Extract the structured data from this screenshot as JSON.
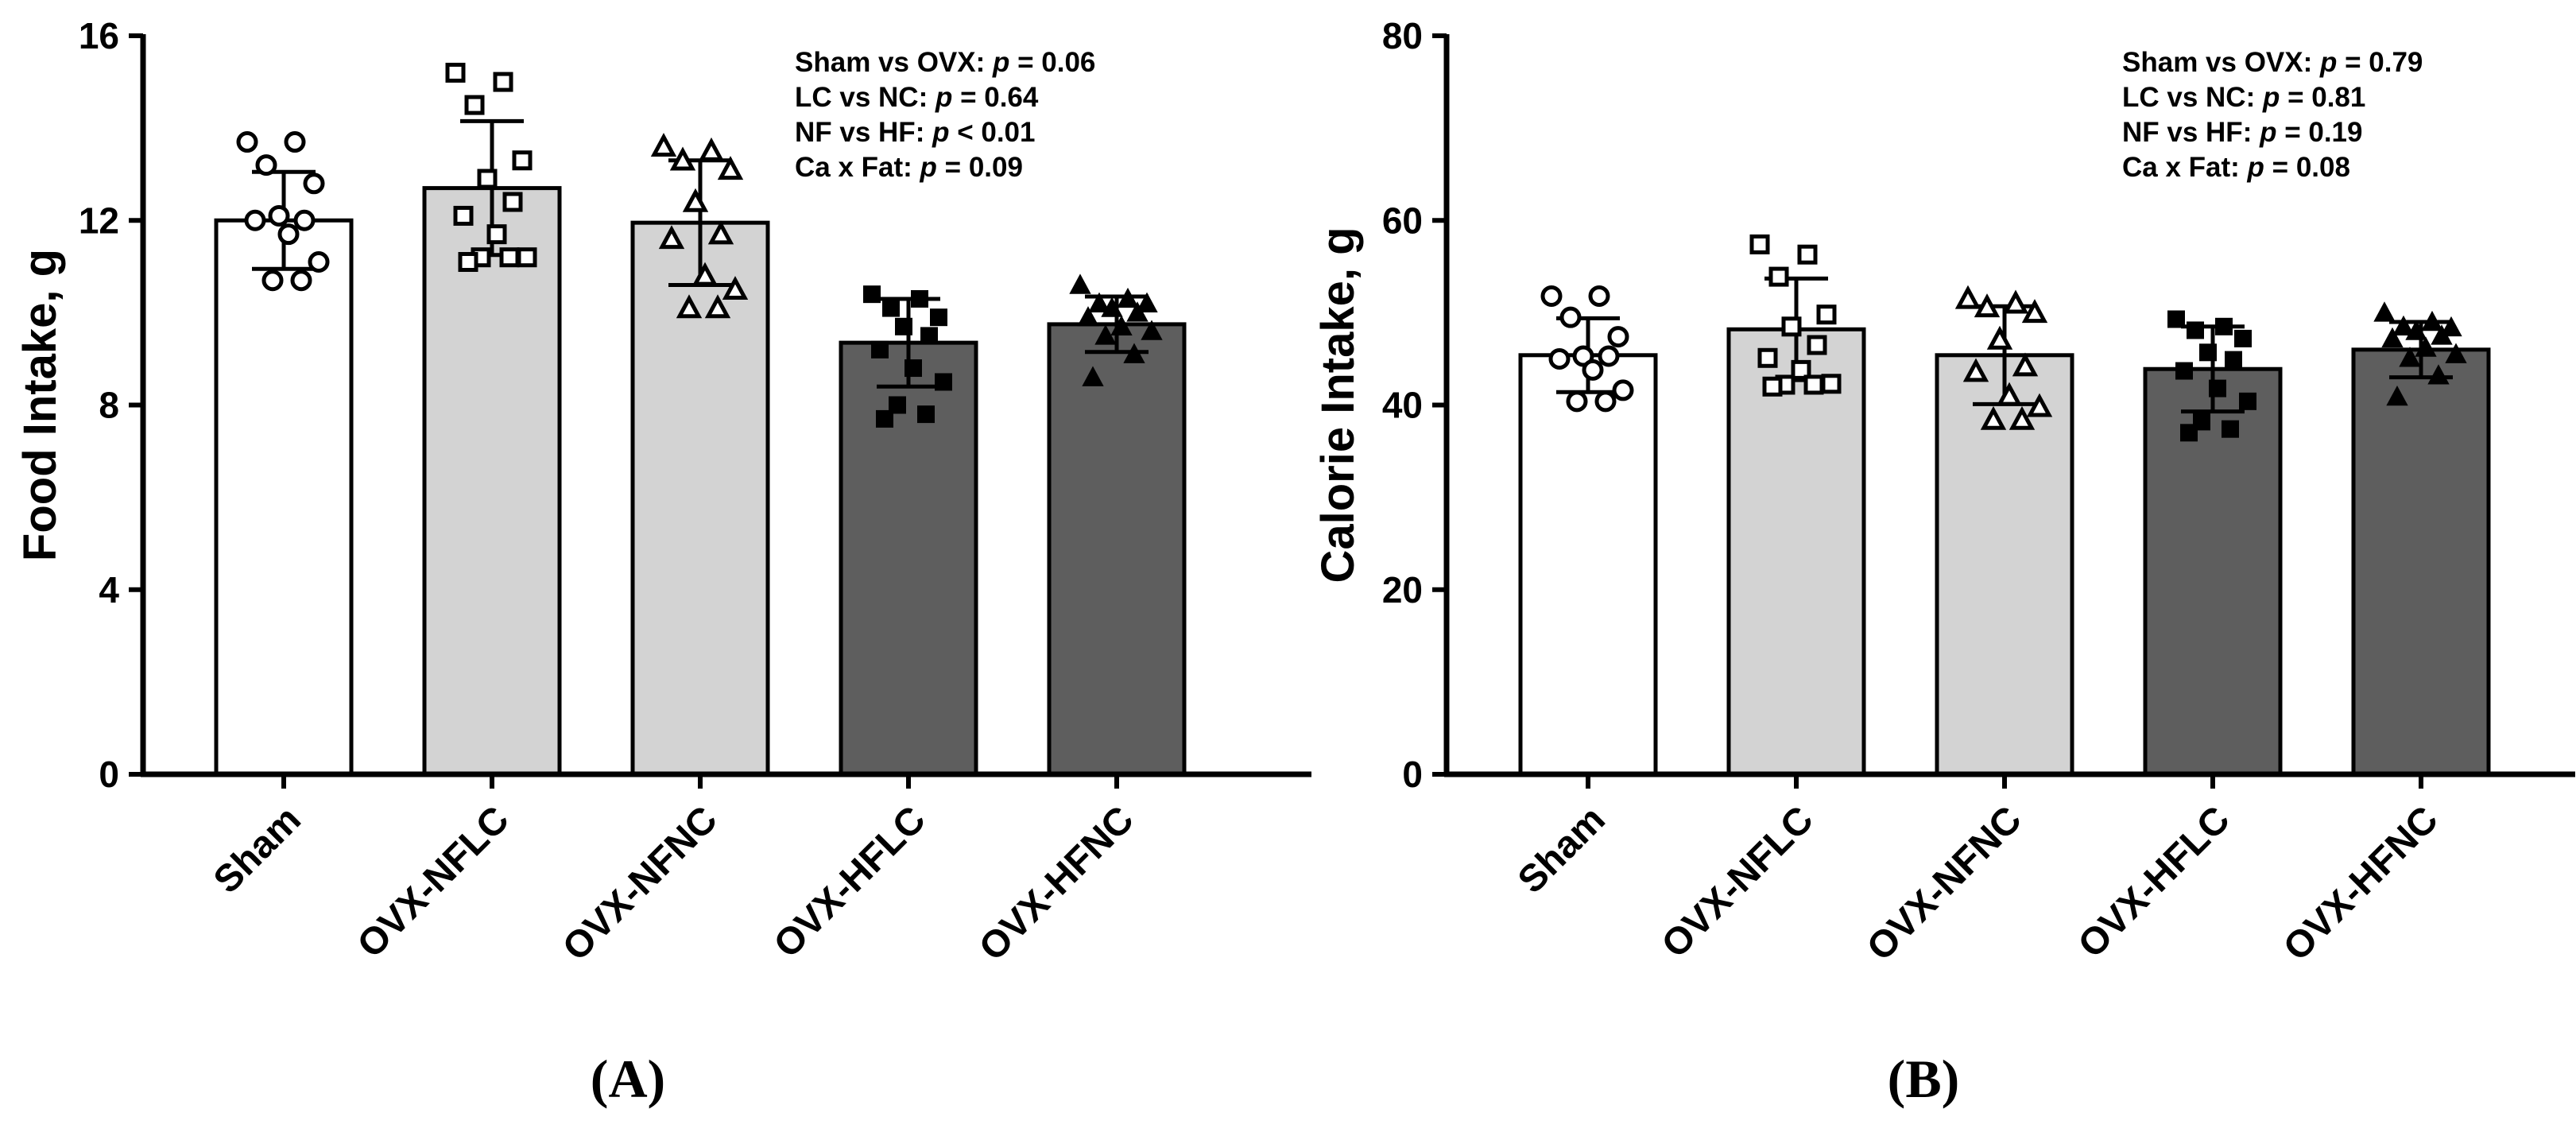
{
  "chart_data": [
    {
      "type": "bar",
      "panel": "(A)",
      "ylabel": "Food Intake, g",
      "ylim": [
        0,
        16
      ],
      "yticks": [
        0,
        4,
        8,
        12,
        16
      ],
      "categories": [
        "Sham",
        "OVX-NFLC",
        "OVX-NFNC",
        "OVX-HFLC",
        "OVX-HFNC"
      ],
      "bar_colors": [
        "#ffffff",
        "#d3d3d3",
        "#d3d3d3",
        "#5e5e5e",
        "#5e5e5e"
      ],
      "marker_shapes": [
        "open-circle",
        "open-square",
        "open-triangle",
        "filled-square",
        "filled-triangle"
      ],
      "values": [
        12.0,
        12.7,
        11.95,
        9.35,
        9.75
      ],
      "sd": [
        1.05,
        1.45,
        1.35,
        0.95,
        0.6
      ],
      "points": [
        [
          13.7,
          13.7,
          13.2,
          12.8,
          12.1,
          12.0,
          12.0,
          11.7,
          11.1,
          10.7,
          10.7
        ],
        [
          15.2,
          15.0,
          14.5,
          13.3,
          12.9,
          12.4,
          12.1,
          11.7,
          11.2,
          11.2,
          11.2,
          11.1
        ],
        [
          13.6,
          13.5,
          13.3,
          13.1,
          12.4,
          11.7,
          11.6,
          10.8,
          10.5,
          10.1,
          10.1
        ],
        [
          10.4,
          10.3,
          10.1,
          9.9,
          9.7,
          9.5,
          9.2,
          8.8,
          8.5,
          8.0,
          7.8,
          7.7
        ],
        [
          10.6,
          10.3,
          10.2,
          10.2,
          10.1,
          10.0,
          9.9,
          9.7,
          9.6,
          9.5,
          9.1,
          8.6
        ]
      ],
      "annotations": [
        {
          "label": "Sham vs OVX: ",
          "p": "p",
          "rest": " = 0.06"
        },
        {
          "label": "LC vs NC: ",
          "p": "p",
          "rest": " = 0.64"
        },
        {
          "label": "NF vs HF: ",
          "p": "p",
          "rest": " < 0.01"
        },
        {
          "label": "Ca x Fat: ",
          "p": "p",
          "rest": " = 0.09"
        }
      ]
    },
    {
      "type": "bar",
      "panel": "(B)",
      "ylabel": "Calorie Intake, g",
      "ylim": [
        0,
        80
      ],
      "yticks": [
        0,
        20,
        40,
        60,
        80
      ],
      "categories": [
        "Sham",
        "OVX-NFLC",
        "OVX-NFNC",
        "OVX-HFLC",
        "OVX-HFNC"
      ],
      "bar_colors": [
        "#ffffff",
        "#d3d3d3",
        "#d3d3d3",
        "#5e5e5e",
        "#5e5e5e"
      ],
      "marker_shapes": [
        "open-circle",
        "open-square",
        "open-triangle",
        "filled-square",
        "filled-triangle"
      ],
      "values": [
        45.4,
        48.2,
        45.4,
        43.9,
        46.0
      ],
      "sd": [
        4.0,
        5.5,
        5.3,
        4.6,
        3.0
      ],
      "points": [
        [
          51.8,
          51.8,
          49.5,
          47.4,
          45.3,
          45.3,
          45.0,
          43.8,
          41.6,
          40.4,
          40.4
        ],
        [
          57.4,
          56.3,
          53.9,
          49.8,
          48.5,
          46.5,
          45.1,
          43.8,
          42.3,
          42.2,
          42.2,
          42.0
        ],
        [
          51.5,
          51.0,
          50.6,
          50.0,
          47.1,
          44.2,
          43.6,
          41.0,
          39.8,
          38.4,
          38.4
        ],
        [
          49.3,
          48.5,
          48.1,
          47.2,
          45.7,
          44.9,
          43.7,
          41.8,
          40.4,
          38.2,
          37.4,
          37.0
        ],
        [
          50.0,
          49.0,
          48.5,
          48.4,
          48.0,
          47.5,
          47.2,
          46.2,
          45.5,
          45.1,
          43.2,
          40.9
        ]
      ],
      "annotations": [
        {
          "label": "Sham vs OVX: ",
          "p": "p",
          "rest": " = 0.79"
        },
        {
          "label": "LC vs NC: ",
          "p": "p",
          "rest": " = 0.81"
        },
        {
          "label": "NF vs HF: ",
          "p": "p",
          "rest": " = 0.19"
        },
        {
          "label": "Ca x Fat: ",
          "p": "p",
          "rest": " = 0.08"
        }
      ]
    }
  ]
}
